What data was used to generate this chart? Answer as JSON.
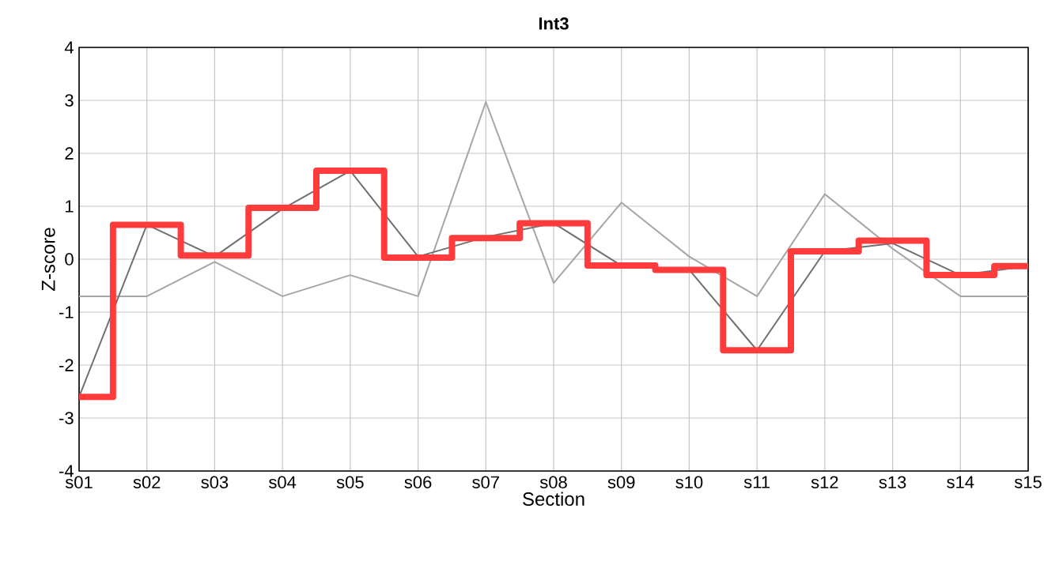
{
  "chart_data": {
    "type": "line",
    "title": "Int3",
    "xlabel": "Section",
    "ylabel": "Z-score",
    "categories": [
      "s01",
      "s02",
      "s03",
      "s04",
      "s05",
      "s06",
      "s07",
      "s08",
      "s09",
      "s10",
      "s11",
      "s12",
      "s13",
      "s14",
      "s15"
    ],
    "ylim": [
      -4,
      4
    ],
    "yticks": [
      -4,
      -3,
      -2,
      -1,
      0,
      1,
      2,
      3,
      4
    ],
    "grid": true,
    "marker": "none",
    "line_style": "solid",
    "series": [
      {
        "color": "#a6a6a6",
        "values": [
          -0.7,
          -0.7,
          -0.05,
          -0.7,
          -0.3,
          -0.7,
          2.97,
          -0.45,
          1.07,
          0.05,
          -0.7,
          1.23,
          0.2,
          -0.7,
          -0.7
        ]
      },
      {
        "color": "#707070",
        "values": [
          -2.6,
          0.65,
          0.05,
          0.95,
          1.67,
          0.05,
          0.42,
          0.68,
          -0.12,
          -0.2,
          -1.72,
          0.15,
          0.3,
          -0.3,
          -0.13
        ]
      },
      {
        "type": "step",
        "color": "#ff3b3b",
        "values": [
          -2.6,
          0.65,
          0.07,
          0.97,
          1.67,
          0.03,
          0.4,
          0.68,
          -0.12,
          -0.2,
          -1.72,
          0.15,
          0.35,
          -0.3,
          -0.13
        ]
      }
    ]
  }
}
